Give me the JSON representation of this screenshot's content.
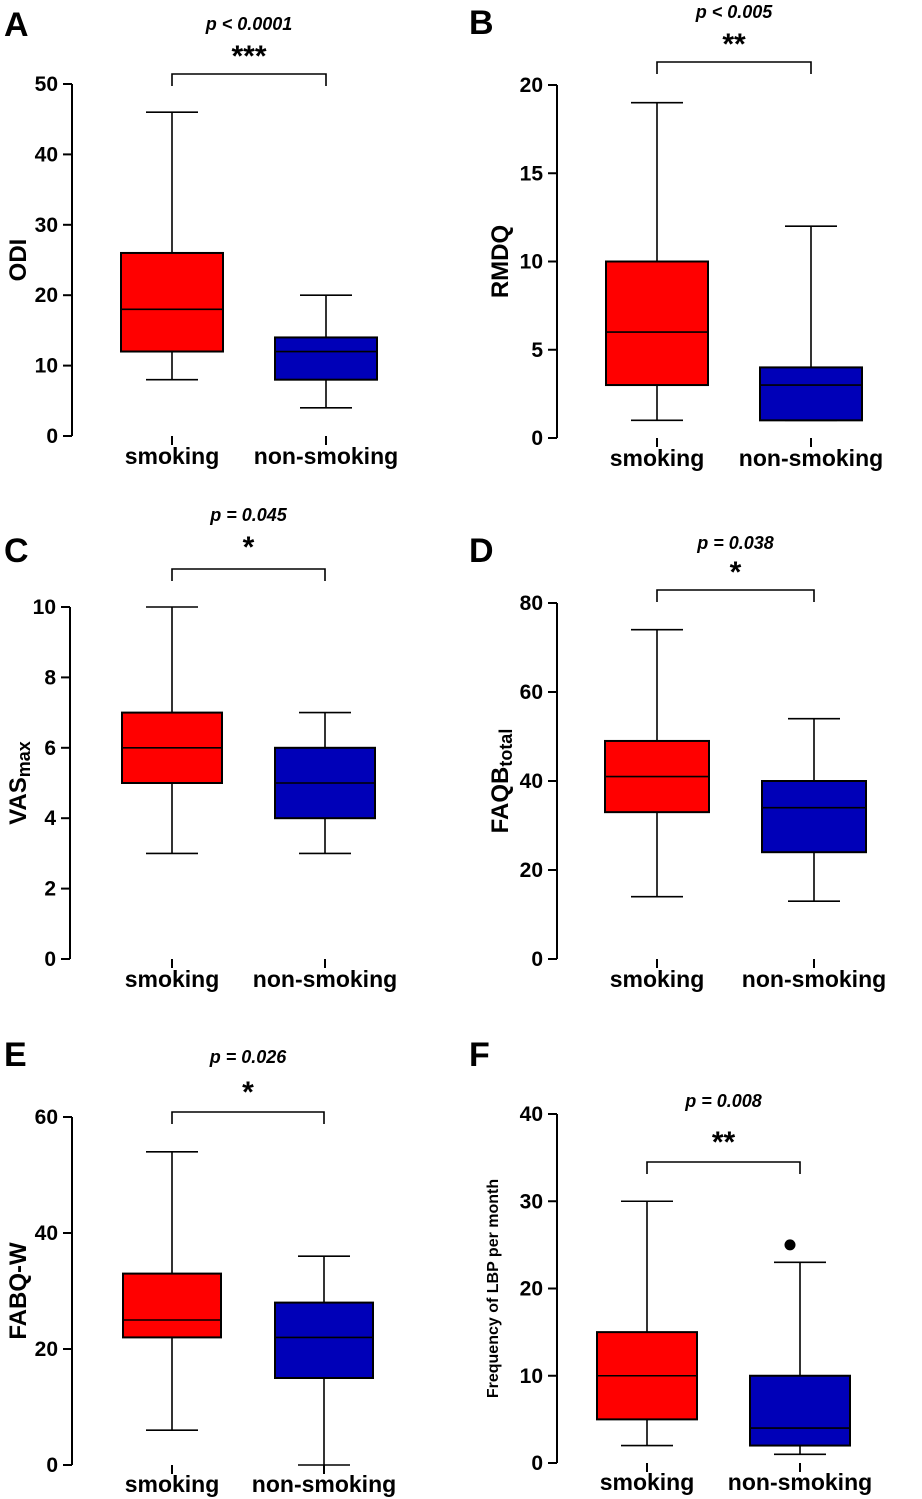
{
  "colors": {
    "smoking": "#ff0000",
    "non_smoking": "#0000b8",
    "axis": "#000000"
  },
  "chart_data": [
    {
      "panel": "A",
      "type": "box",
      "ylabel": "ODI",
      "ylabel_sub": "",
      "ylim": [
        0,
        50
      ],
      "yticks": [
        0,
        10,
        20,
        30,
        40,
        50
      ],
      "categories": [
        "smoking",
        "non-smoking"
      ],
      "boxes": [
        {
          "whisker_low": 8,
          "q1": 12,
          "median": 18,
          "q3": 26,
          "whisker_high": 46,
          "outliers": []
        },
        {
          "whisker_low": 4,
          "q1": 8,
          "median": 12,
          "q3": 14,
          "whisker_high": 20,
          "outliers": []
        }
      ],
      "p_value": "p < 0.0001",
      "stars": "***"
    },
    {
      "panel": "B",
      "type": "box",
      "ylabel": "RMDQ",
      "ylabel_sub": "",
      "ylim": [
        0,
        20
      ],
      "yticks": [
        0,
        5,
        10,
        15,
        20
      ],
      "categories": [
        "smoking",
        "non-smoking"
      ],
      "boxes": [
        {
          "whisker_low": 1,
          "q1": 3,
          "median": 6,
          "q3": 10,
          "whisker_high": 19,
          "outliers": []
        },
        {
          "whisker_low": 1,
          "q1": 1,
          "median": 3,
          "q3": 4,
          "whisker_high": 12,
          "outliers": []
        }
      ],
      "p_value": "p < 0.005",
      "stars": "**"
    },
    {
      "panel": "C",
      "type": "box",
      "ylabel": "VAS",
      "ylabel_sub": "max",
      "ylim": [
        0,
        10
      ],
      "yticks": [
        0,
        2,
        4,
        6,
        8,
        10
      ],
      "categories": [
        "smoking",
        "non-smoking"
      ],
      "boxes": [
        {
          "whisker_low": 3,
          "q1": 5,
          "median": 6,
          "q3": 7,
          "whisker_high": 10,
          "outliers": []
        },
        {
          "whisker_low": 3,
          "q1": 4,
          "median": 5,
          "q3": 6,
          "whisker_high": 7,
          "outliers": []
        }
      ],
      "p_value": "p = 0.045",
      "stars": "*"
    },
    {
      "panel": "D",
      "type": "box",
      "ylabel": "FAQB",
      "ylabel_sub": "total",
      "ylim": [
        0,
        80
      ],
      "yticks": [
        0,
        20,
        40,
        60,
        80
      ],
      "categories": [
        "smoking",
        "non-smoking"
      ],
      "boxes": [
        {
          "whisker_low": 14,
          "q1": 33,
          "median": 41,
          "q3": 49,
          "whisker_high": 74,
          "outliers": []
        },
        {
          "whisker_low": 13,
          "q1": 24,
          "median": 34,
          "q3": 40,
          "whisker_high": 54,
          "outliers": []
        }
      ],
      "p_value": "p = 0.038",
      "stars": "*"
    },
    {
      "panel": "E",
      "type": "box",
      "ylabel": "FABQ-W",
      "ylabel_sub": "",
      "ylim": [
        0,
        60
      ],
      "yticks": [
        0,
        20,
        40,
        60
      ],
      "categories": [
        "smoking",
        "non-smoking"
      ],
      "boxes": [
        {
          "whisker_low": 6,
          "q1": 22,
          "median": 25,
          "q3": 33,
          "whisker_high": 54,
          "outliers": []
        },
        {
          "whisker_low": 0,
          "q1": 15,
          "median": 22,
          "q3": 28,
          "whisker_high": 36,
          "outliers": []
        }
      ],
      "p_value": "p = 0.026",
      "stars": "*"
    },
    {
      "panel": "F",
      "type": "box",
      "ylabel": "Frequency of LBP per month",
      "ylabel_sub": "",
      "ylim": [
        0,
        40
      ],
      "yticks": [
        0,
        10,
        20,
        30,
        40
      ],
      "categories": [
        "smoking",
        "non-smoking"
      ],
      "boxes": [
        {
          "whisker_low": 2,
          "q1": 5,
          "median": 10,
          "q3": 15,
          "whisker_high": 30,
          "outliers": []
        },
        {
          "whisker_low": 1,
          "q1": 2,
          "median": 4,
          "q3": 10,
          "whisker_high": 23,
          "outliers": [
            25
          ]
        }
      ],
      "p_value": "p = 0.008",
      "stars": "**"
    }
  ]
}
